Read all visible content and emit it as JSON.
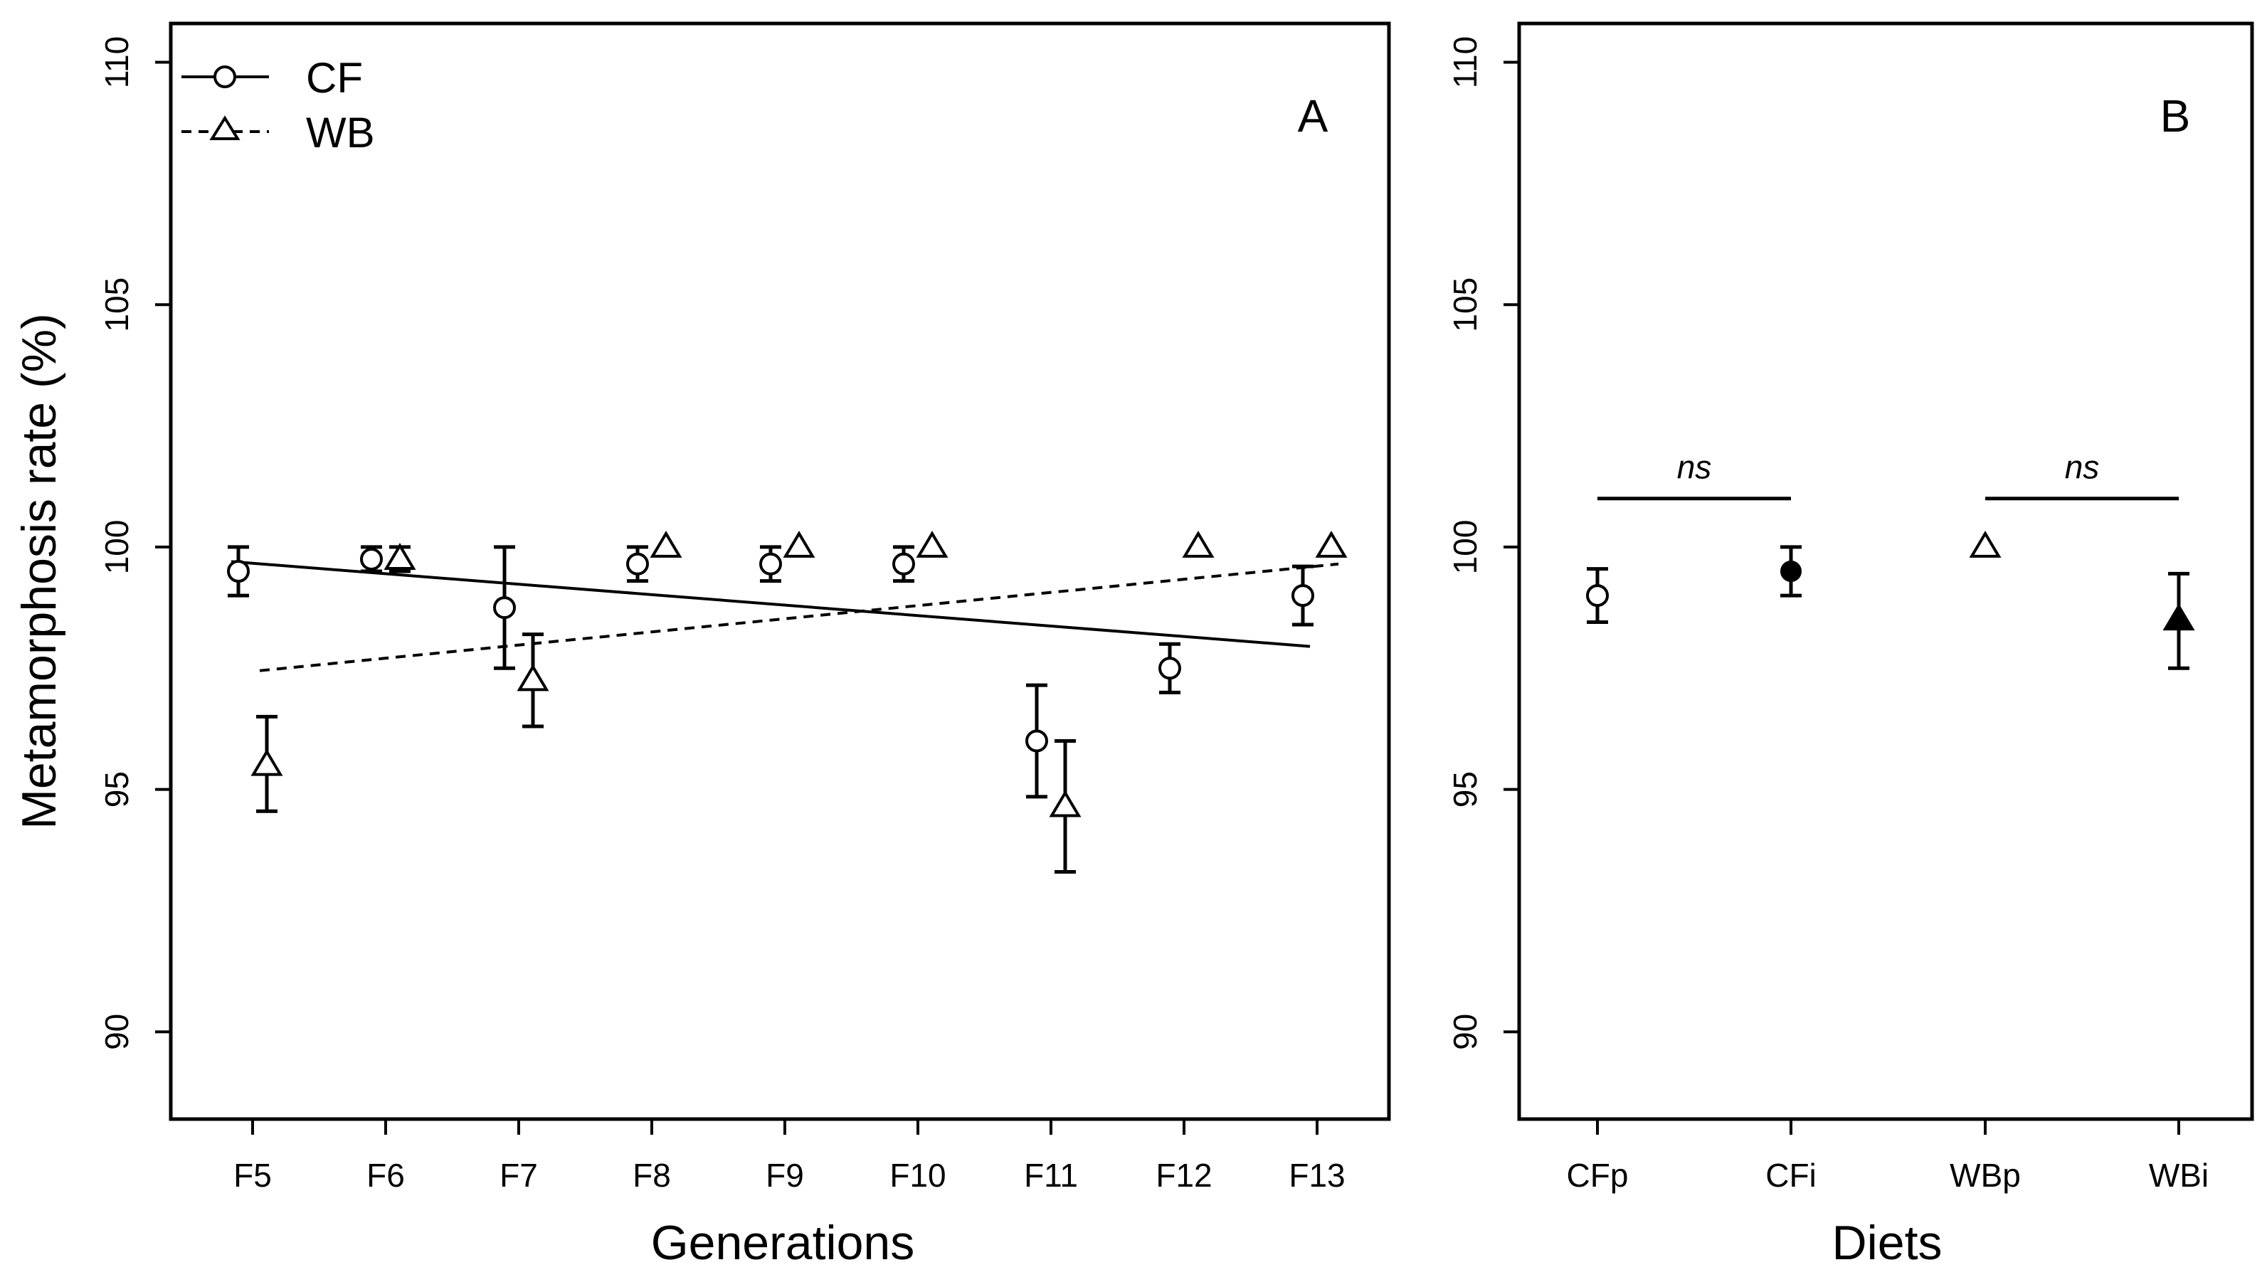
{
  "chart_data": [
    {
      "panel": "A",
      "type": "scatter",
      "panel_label": "A",
      "xlabel": "Generations",
      "ylabel": "Metamorphosis rate (%)",
      "ylim": [
        88.2,
        110.8
      ],
      "yticks": [
        "90",
        "95",
        "100",
        "105",
        "110"
      ],
      "categories": [
        "F5",
        "F6",
        "F7",
        "F8",
        "F9",
        "F10",
        "F11",
        "F12",
        "F13"
      ],
      "legend": {
        "position": "top-left",
        "entries": [
          {
            "label": "CF",
            "marker": "open-circle",
            "line": "solid"
          },
          {
            "label": "WB",
            "marker": "open-triangle",
            "line": "dashed"
          }
        ]
      },
      "series": [
        {
          "name": "CF",
          "marker": "open-circle",
          "values": [
            99.5,
            99.75,
            98.75,
            99.65,
            99.65,
            99.65,
            96.0,
            97.5,
            99.0
          ],
          "err_low": [
            99.0,
            99.5,
            97.5,
            99.3,
            99.3,
            99.3,
            94.85,
            97.0,
            98.4
          ],
          "err_high": [
            100.0,
            100.0,
            100.0,
            100.0,
            100.0,
            100.0,
            97.15,
            98.0,
            99.6
          ],
          "trend": {
            "style": "solid",
            "from": 99.7,
            "to": 97.95
          }
        },
        {
          "name": "WB",
          "marker": "open-triangle",
          "values": [
            95.5,
            99.75,
            97.25,
            100.0,
            100.0,
            100.0,
            94.65,
            100.0,
            100.0
          ],
          "err_low": [
            94.55,
            99.5,
            96.3,
            100.0,
            100.0,
            100.0,
            93.3,
            100.0,
            100.0
          ],
          "err_high": [
            96.5,
            100.0,
            98.2,
            100.0,
            100.0,
            100.0,
            96.0,
            100.0,
            100.0
          ],
          "trend": {
            "style": "dashed",
            "from": 97.45,
            "to": 99.65
          }
        }
      ]
    },
    {
      "panel": "B",
      "type": "scatter",
      "panel_label": "B",
      "xlabel": "Diets",
      "ylabel": "",
      "ylim": [
        88.2,
        110.8
      ],
      "yticks": [
        "90",
        "95",
        "100",
        "105",
        "110"
      ],
      "categories": [
        "CFp",
        "CFi",
        "WBp",
        "WBi"
      ],
      "points": [
        {
          "category": "CFp",
          "value": 99.0,
          "err_low": 98.45,
          "err_high": 99.55,
          "marker": "open-circle"
        },
        {
          "category": "CFi",
          "value": 99.5,
          "err_low": 99.0,
          "err_high": 100.0,
          "marker": "filled-circle"
        },
        {
          "category": "WBp",
          "value": 100.0,
          "err_low": 100.0,
          "err_high": 100.0,
          "marker": "open-triangle"
        },
        {
          "category": "WBi",
          "value": 98.5,
          "err_low": 97.5,
          "err_high": 99.45,
          "marker": "filled-triangle"
        }
      ],
      "annotations": [
        {
          "text": "ns",
          "from": "CFp",
          "to": "CFi",
          "line_y": 101.0,
          "text_y": 101.65
        },
        {
          "text": "ns",
          "from": "WBp",
          "to": "WBi",
          "line_y": 101.0,
          "text_y": 101.65
        }
      ]
    }
  ]
}
